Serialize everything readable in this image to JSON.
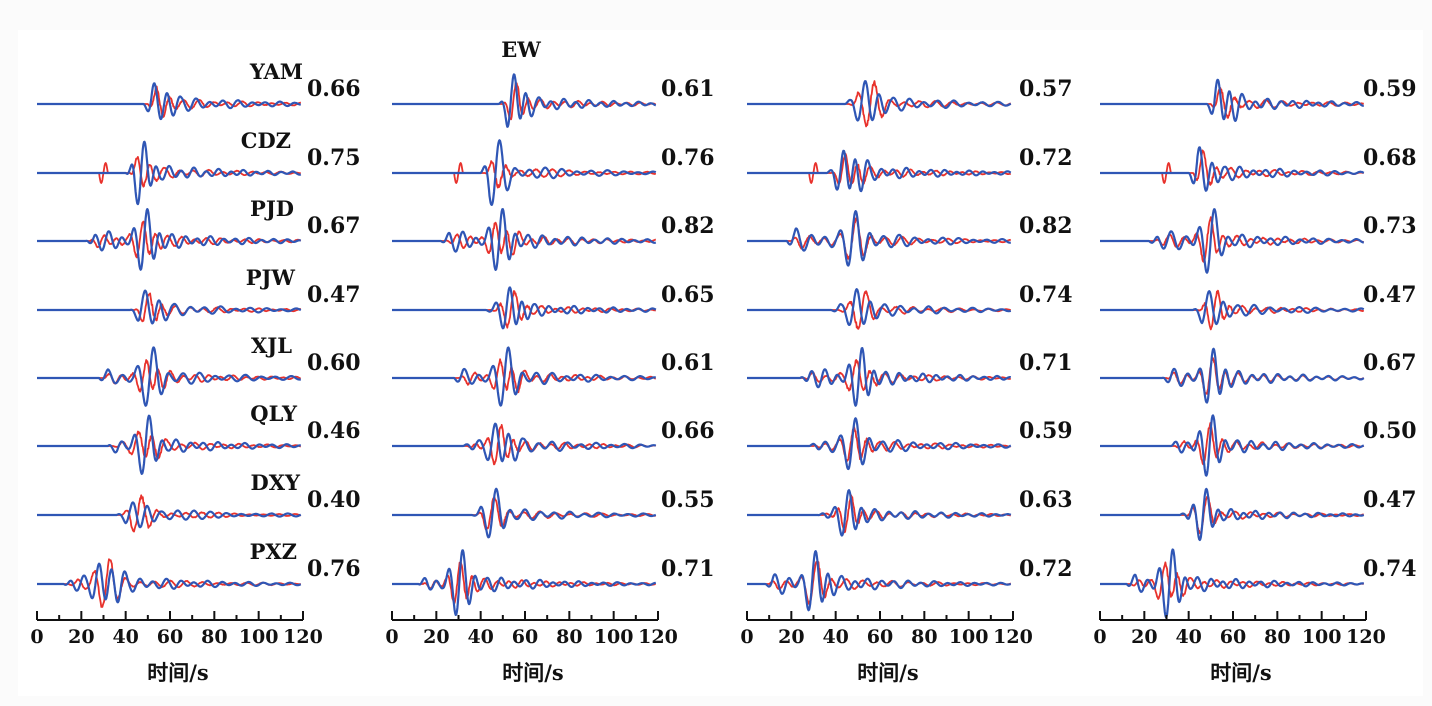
{
  "chart_data": {
    "type": "line",
    "component_label": "EW",
    "xlabel": "时间/s",
    "x_ticks": [
      0,
      20,
      40,
      60,
      80,
      100,
      120
    ],
    "xlim": [
      0,
      120
    ],
    "stations": [
      "YAM",
      "CDZ",
      "PJD",
      "PJW",
      "XJL",
      "QLY",
      "DXY",
      "PXZ"
    ],
    "colors": {
      "observed": "#e8322c",
      "synthetic": "#2f56b5"
    },
    "panels": [
      {
        "coefficients": [
          "0.66",
          "0.75",
          "0.67",
          "0.47",
          "0.60",
          "0.46",
          "0.40",
          "0.76"
        ]
      },
      {
        "coefficients": [
          "0.61",
          "0.76",
          "0.82",
          "0.65",
          "0.61",
          "0.66",
          "0.55",
          "0.71"
        ]
      },
      {
        "coefficients": [
          "0.57",
          "0.72",
          "0.82",
          "0.74",
          "0.71",
          "0.59",
          "0.63",
          "0.72"
        ]
      },
      {
        "coefficients": [
          "0.59",
          "0.68",
          "0.73",
          "0.47",
          "0.67",
          "0.50",
          "0.47",
          "0.74"
        ]
      }
    ]
  }
}
